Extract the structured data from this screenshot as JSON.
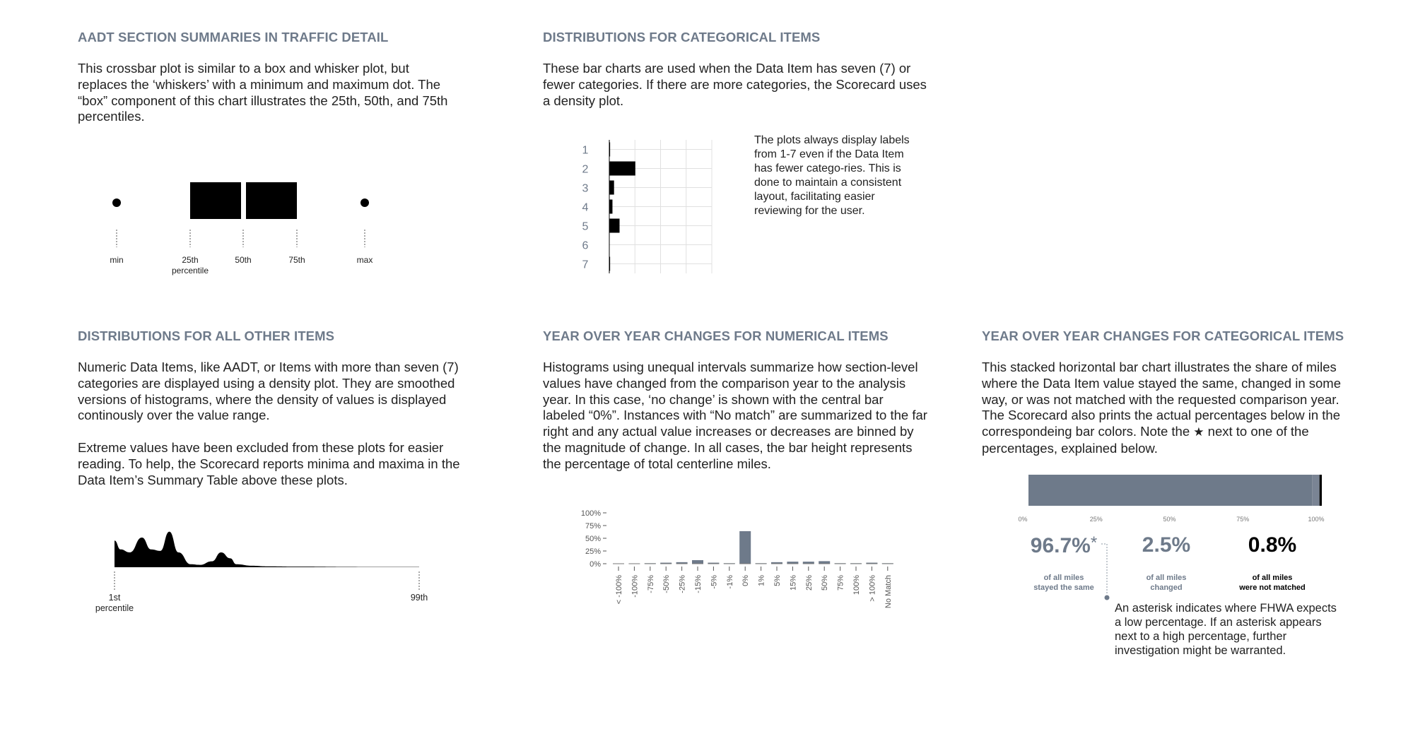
{
  "sections": {
    "aadt": {
      "heading": "AADT SECTION SUMMARIES IN TRAFFIC DETAIL",
      "body": "This crossbar plot is similar to a box and whisker plot, but replaces the ‘whiskers’ with a minimum and maximum dot. The “box” component of this chart illustrates the 25th, 50th, and 75th percentiles.",
      "labels": {
        "min": "min",
        "p25": "25th",
        "p25_sub": "percentile",
        "p50": "50th",
        "p75": "75th",
        "max": "max"
      }
    },
    "categorical": {
      "heading": "DISTRIBUTIONS FOR CATEGORICAL ITEMS",
      "body": "These bar charts are used when the Data Item has seven (7) or fewer categories. If there are more categories, the Scorecard uses a density plot.",
      "note": "The plots always display labels from 1-7 even if the Data Item has fewer catego-ries. This is done to maintain a consistent layout, facilitating easier reviewing for the user."
    },
    "other": {
      "heading": "DISTRIBUTIONS FOR ALL OTHER ITEMS",
      "body1": "Numeric Data Items, like AADT, or Items with more than seven (7) categories are displayed using a density plot. They are smoothed versions of histograms, where the density of values is displayed continously over the value range.",
      "body2": "Extreme values have been excluded from these plots for easier reading. To help, the Scorecard reports minima and maxima in the Data Item’s Summary Table above these plots.",
      "labels": {
        "p1": "1st",
        "p1_sub": "percentile",
        "p99": "99th"
      }
    },
    "yoy_num": {
      "heading": "YEAR OVER YEAR CHANGES FOR NUMERICAL ITEMS",
      "body": "Histograms using unequal intervals summarize how section-level values have changed from the comparison year to the analysis year. In this case, ‘no change’ is shown with the central bar labeled “0%”. Instances with “No match” are summarized to the far right and any actual value increases or decreases are binned by the magnitude of change. In all cases, the bar height represents the percentage of total centerline miles."
    },
    "yoy_cat": {
      "heading": "YEAR OVER YEAR CHANGES FOR CATEGORICAL ITEMS",
      "body_before_star": "This stacked horizontal bar chart illustrates the share of miles where the Data Item value stayed the same, changed in some way, or was not matched with the requested comparison year. The Scorecard also prints the actual percentages below in the correspondeing bar colors. Note the ",
      "star": "★",
      "body_after_star": " next to one of the percentages, explained below.",
      "stats": [
        {
          "value": "96.7%",
          "mark": "*",
          "line1": "of all miles",
          "line2": "stayed the same",
          "color": "#6e7a8a"
        },
        {
          "value": "2.5%",
          "mark": "",
          "line1": "of all miles",
          "line2": "changed",
          "color": "#6e7a8a"
        },
        {
          "value": "0.8%",
          "mark": "",
          "line1": "of all miles",
          "line2": "were not matched",
          "color": "#000000"
        }
      ],
      "note": "An asterisk indicates where FHWA expects a low percentage. If an asterisk appears next to a high percentage, further investigation might be warranted."
    }
  },
  "chart_data": [
    {
      "type": "crossbar",
      "categories": [
        "min",
        "25th",
        "50th",
        "75th",
        "max"
      ],
      "values": [
        0,
        0.28,
        0.5,
        0.72,
        1
      ]
    },
    {
      "type": "bar",
      "orientation": "horizontal",
      "categories": [
        "1",
        "2",
        "3",
        "4",
        "5",
        "6",
        "7"
      ],
      "values": [
        0.1,
        3.3,
        0.6,
        0.4,
        1.3,
        0,
        0.1
      ],
      "xlim": [
        0,
        13
      ],
      "grid": true
    },
    {
      "type": "area",
      "x_labels": [
        "1st",
        "99th"
      ],
      "x": [
        0,
        0.02,
        0.05,
        0.09,
        0.12,
        0.15,
        0.18,
        0.21,
        0.25,
        0.28,
        0.32,
        0.35,
        0.38,
        0.4,
        0.45,
        0.5,
        0.6,
        0.8,
        1.0
      ],
      "y": [
        0.9,
        0.6,
        0.5,
        1.0,
        0.6,
        0.55,
        1.2,
        0.5,
        0.1,
        0.08,
        0.2,
        0.5,
        0.3,
        0.1,
        0.05,
        0.03,
        0.02,
        0.01,
        0.01
      ]
    },
    {
      "type": "bar",
      "categories": [
        "< -100%",
        "-100%",
        "-75%",
        "-50%",
        "-25%",
        "-15%",
        "-5%",
        "-1%",
        "0%",
        "1%",
        "5%",
        "15%",
        "25%",
        "50%",
        "75%",
        "100%",
        "> 100%",
        "No Match"
      ],
      "values": [
        0,
        0,
        1,
        2,
        3,
        7,
        2,
        1,
        64,
        1,
        3,
        4,
        4,
        5,
        1,
        1,
        2,
        1
      ],
      "highlight": "0%",
      "yticks": [
        "0%",
        "25%",
        "50%",
        "75%",
        "100%"
      ],
      "ylim": [
        0,
        100
      ],
      "bar_color": "#6e7a8a"
    },
    {
      "type": "bar",
      "orientation": "horizontal",
      "stacked": true,
      "series": [
        {
          "name": "stayed the same",
          "values": [
            96.7
          ],
          "color": "#6e7a8a"
        },
        {
          "name": "changed",
          "values": [
            2.5
          ],
          "color": "#7a8494"
        },
        {
          "name": "were not matched",
          "values": [
            0.8
          ],
          "color": "#000000"
        }
      ],
      "xticks": [
        "0%",
        "25%",
        "50%",
        "75%",
        "100%"
      ],
      "xlim": [
        0,
        100
      ]
    }
  ]
}
